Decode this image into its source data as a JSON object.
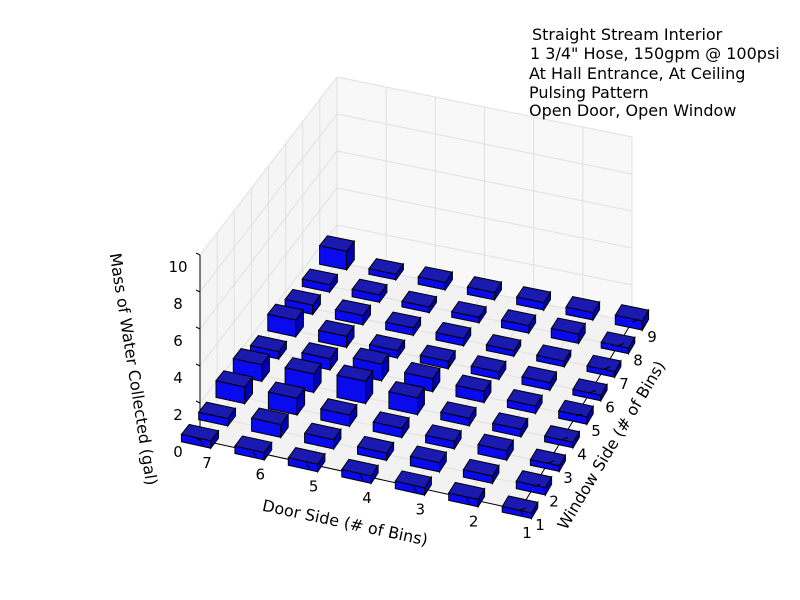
{
  "chart_data": {
    "type": "bar3d",
    "annotation": [
      "Straight Stream Interior",
      "1 3/4\" Hose, 150gpm @ 100psi",
      "At Hall Entrance, At Ceiling",
      "Pulsing Pattern",
      "Open Door, Open Window"
    ],
    "xlabel": "Door Side (# of Bins)",
    "ylabel": "Window Side (# of Bins)",
    "zlabel": "Mass of Water Collected (gal)",
    "x_ticks": [
      "1",
      "2",
      "3",
      "4",
      "5",
      "6",
      "7"
    ],
    "y_ticks": [
      "1",
      "2",
      "3",
      "4",
      "5",
      "6",
      "7",
      "8",
      "9"
    ],
    "z_ticks": [
      "0",
      "2",
      "4",
      "6",
      "8",
      "10"
    ],
    "zlim": [
      0,
      10
    ],
    "grid": true,
    "bar_color": "#0000ff",
    "values_by_door_bin": [
      [
        0.3,
        0.4,
        0.3,
        0.3,
        0.4,
        0.3,
        0.3,
        0.3,
        0.5
      ],
      [
        0.4,
        0.4,
        0.5,
        0.4,
        0.4,
        0.4,
        0.3,
        0.5,
        0.4
      ],
      [
        0.4,
        0.5,
        0.4,
        0.4,
        0.6,
        0.4,
        0.3,
        0.4,
        0.4
      ],
      [
        0.4,
        0.4,
        0.5,
        0.9,
        0.7,
        0.4,
        0.4,
        0.3,
        0.4
      ],
      [
        0.4,
        0.5,
        0.6,
        1.2,
        0.9,
        0.4,
        0.4,
        0.3,
        0.4
      ],
      [
        0.4,
        0.7,
        0.9,
        1.0,
        0.6,
        0.6,
        0.5,
        0.4,
        0.3
      ],
      [
        0.4,
        0.4,
        0.9,
        0.9,
        0.4,
        0.9,
        0.5,
        0.4,
        1.0
      ]
    ]
  }
}
